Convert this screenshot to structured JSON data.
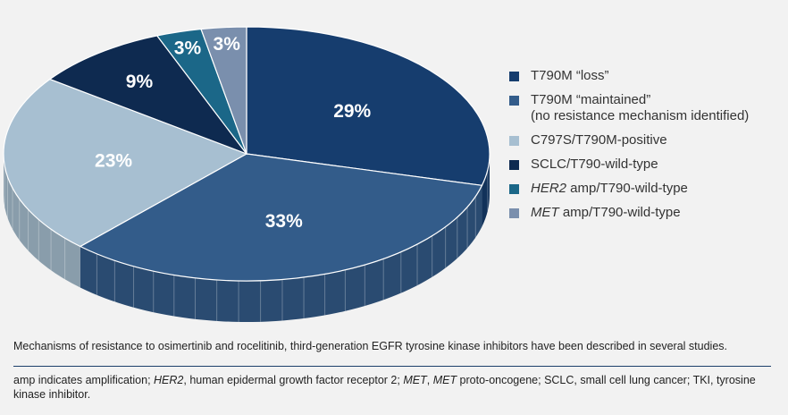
{
  "chart_data": {
    "type": "pie",
    "slices": [
      {
        "label": "T790M “loss”",
        "value": 29,
        "value_label": "29%",
        "color": "#163d6e"
      },
      {
        "label": "T790M “maintained” (no resistance mechanism identified)",
        "value": 33,
        "value_label": "33%",
        "color": "#335c8a"
      },
      {
        "label": "C797S/T790M-positive",
        "value": 23,
        "value_label": "23%",
        "color": "#a7bfd1"
      },
      {
        "label": "SCLC/T790-wild-type",
        "value": 9,
        "value_label": "9%",
        "color": "#0e2a50"
      },
      {
        "label": "HER2 amp/T790-wild-type",
        "value": 3,
        "value_label": "3%",
        "color": "#1b6788"
      },
      {
        "label": "MET amp/T790-wild-type",
        "value": 3,
        "value_label": "3%",
        "color": "#7a8fad"
      }
    ],
    "legend_position": "right",
    "style": "3d"
  },
  "legend": {
    "items": [
      {
        "line1_italic": "",
        "line1": "T790M “loss”",
        "line2": "",
        "color": "#163d6e"
      },
      {
        "line1_italic": "",
        "line1": "T790M “maintained”",
        "line2": "(no resistance mechanism identified)",
        "color": "#335c8a"
      },
      {
        "line1_italic": "",
        "line1": "C797S/T790M-positive",
        "line2": "",
        "color": "#a7bfd1"
      },
      {
        "line1_italic": "",
        "line1": "SCLC/T790-wild-type",
        "line2": "",
        "color": "#0e2a50"
      },
      {
        "line1_italic": "HER2",
        "line1": " amp/T790-wild-type",
        "line2": "",
        "color": "#1b6788"
      },
      {
        "line1_italic": "MET",
        "line1": " amp/T790-wild-type",
        "line2": "",
        "color": "#7a8fad"
      }
    ]
  },
  "caption": "Mechanisms of resistance to osimertinib and rocelitinib, third-generation EGFR tyrosine kinase inhibitors have been described in several studies.",
  "footnote": {
    "p1": "amp indicates amplification; ",
    "her2": "HER2",
    "p2": ", human epidermal growth factor receptor 2; ",
    "met1": "MET",
    "p3": ", ",
    "met2": "MET",
    "p4": " proto-oncogene; SCLC, small cell lung cancer; TKI, tyrosine kinase inhibitor."
  }
}
